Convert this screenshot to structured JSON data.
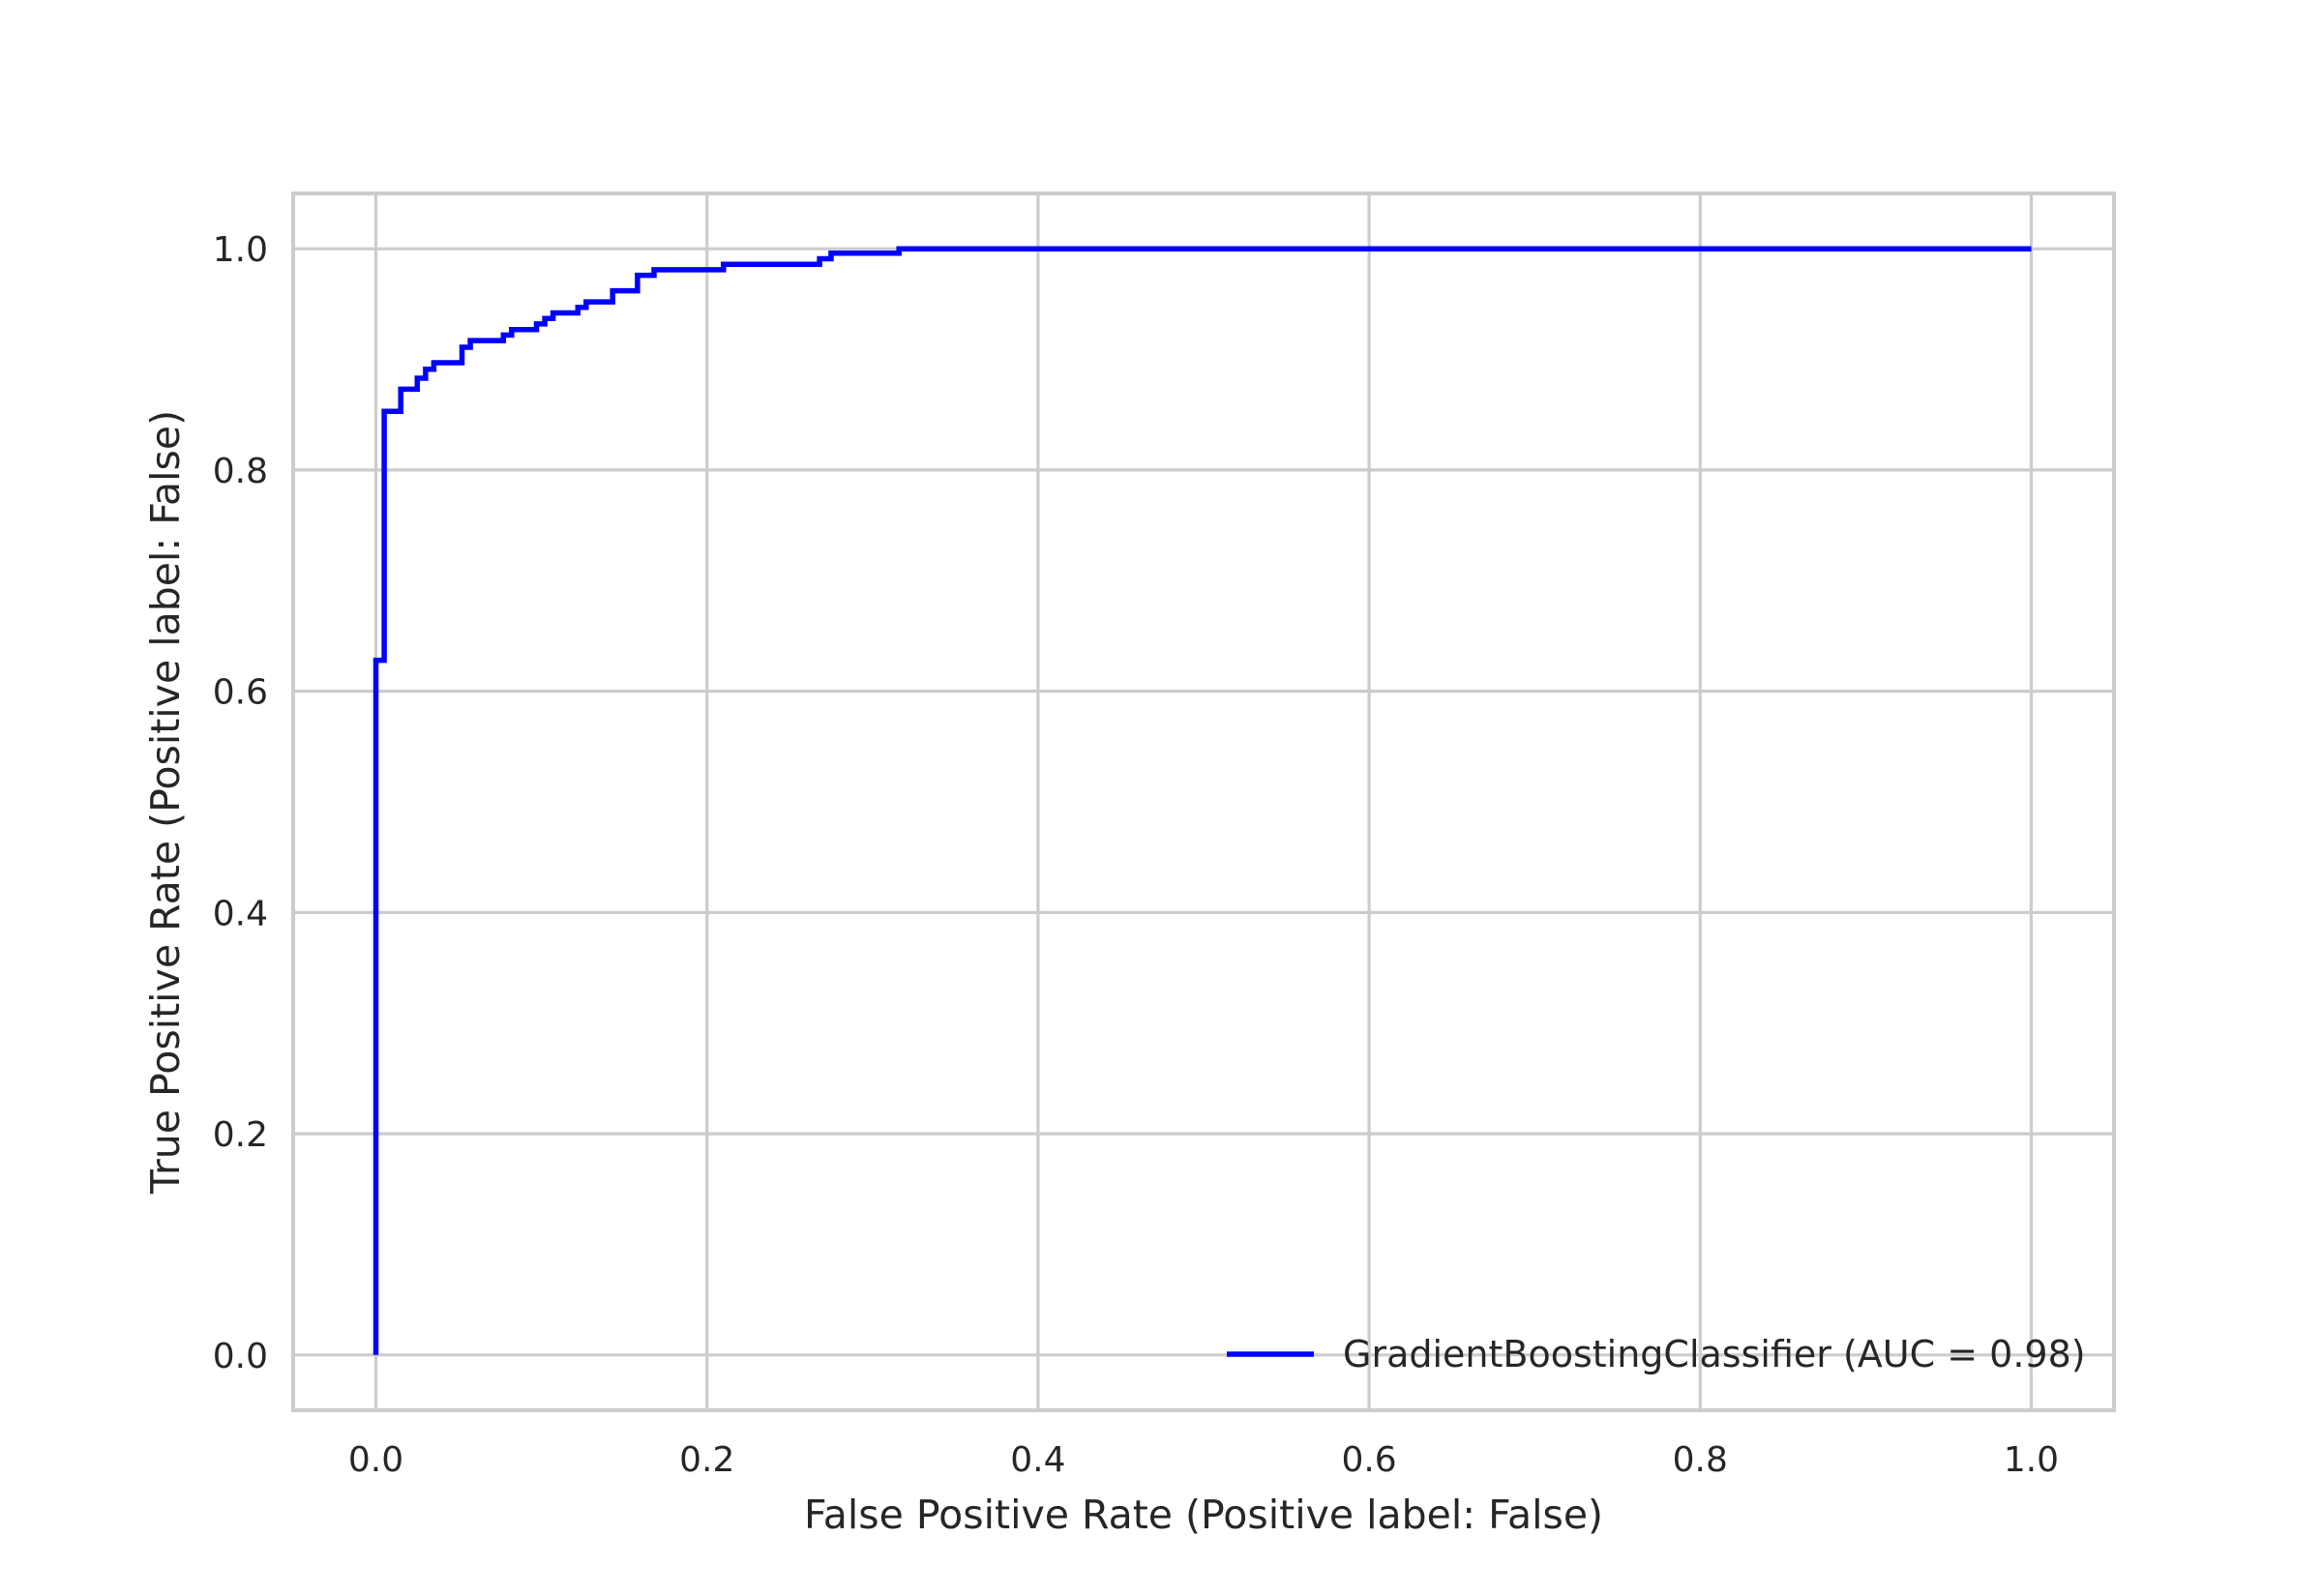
{
  "chart_data": {
    "type": "line",
    "title": "",
    "xlabel": "False Positive Rate (Positive label: False)",
    "ylabel": "True Positive Rate (Positive label: False)",
    "xlim": [
      -0.05,
      1.05
    ],
    "ylim": [
      -0.05,
      1.05
    ],
    "xticks": [
      0.0,
      0.2,
      0.4,
      0.6,
      0.8,
      1.0
    ],
    "yticks": [
      0.0,
      0.2,
      0.4,
      0.6,
      0.8,
      1.0
    ],
    "xtick_labels": [
      "0.0",
      "0.2",
      "0.4",
      "0.6",
      "0.8",
      "1.0"
    ],
    "ytick_labels": [
      "0.0",
      "0.2",
      "0.4",
      "0.6",
      "0.8",
      "1.0"
    ],
    "grid": true,
    "legend_position": "lower-right",
    "series": [
      {
        "name": "GradientBoostingClassifier (AUC = 0.98)",
        "color": "#0000ff",
        "x": [
          0.0,
          0.0,
          0.0,
          0.005,
          0.005,
          0.015,
          0.015,
          0.025,
          0.025,
          0.03,
          0.03,
          0.035,
          0.035,
          0.052,
          0.052,
          0.057,
          0.057,
          0.077,
          0.077,
          0.082,
          0.082,
          0.097,
          0.097,
          0.102,
          0.102,
          0.107,
          0.107,
          0.122,
          0.122,
          0.127,
          0.127,
          0.143,
          0.143,
          0.158,
          0.158,
          0.168,
          0.168,
          0.21,
          0.21,
          0.268,
          0.268,
          0.275,
          0.275,
          0.316,
          0.316,
          1.0
        ],
        "y": [
          0.0,
          0.628,
          0.628,
          0.628,
          0.853,
          0.853,
          0.873,
          0.873,
          0.883,
          0.883,
          0.891,
          0.891,
          0.897,
          0.897,
          0.911,
          0.911,
          0.917,
          0.917,
          0.922,
          0.922,
          0.927,
          0.927,
          0.932,
          0.932,
          0.937,
          0.937,
          0.942,
          0.942,
          0.947,
          0.947,
          0.952,
          0.952,
          0.962,
          0.962,
          0.976,
          0.976,
          0.981,
          0.981,
          0.986,
          0.986,
          0.991,
          0.991,
          0.996,
          0.996,
          1.0,
          1.0
        ]
      }
    ]
  }
}
